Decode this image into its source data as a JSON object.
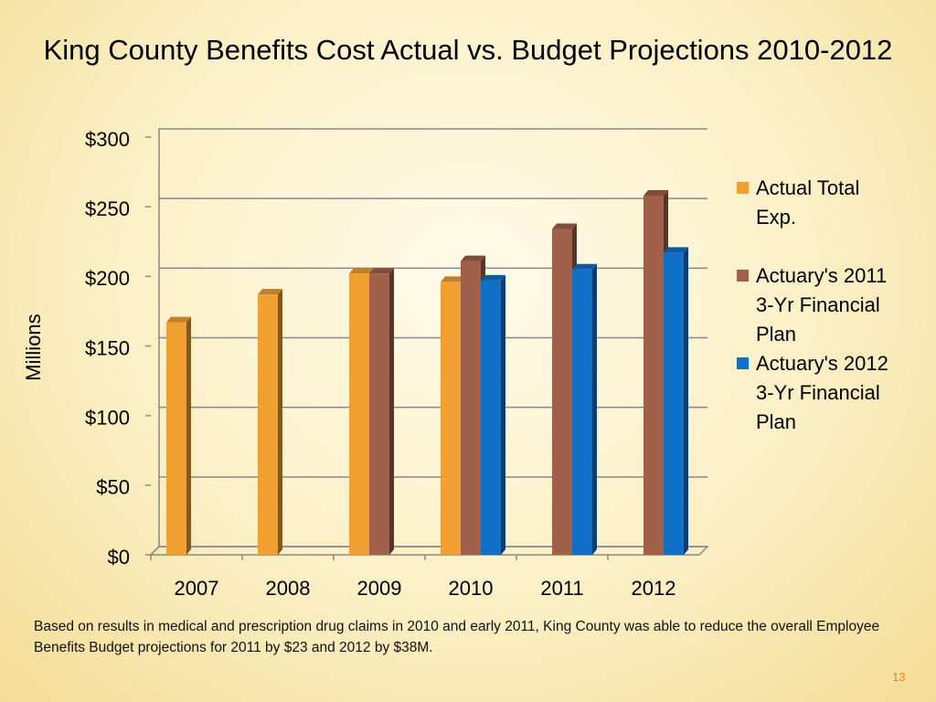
{
  "chart_data": {
    "type": "bar3d",
    "title": "King County Benefits Cost Actual vs. Budget Projections 2010-2012",
    "y_label": "Millions",
    "categories": [
      "2007",
      "2008",
      "2009",
      "2010",
      "2011",
      "2012"
    ],
    "series": [
      {
        "name": "Actual Total Exp.",
        "color": "#f0a030",
        "values": [
          167,
          187,
          202,
          196,
          null,
          null
        ]
      },
      {
        "name": "Actuary's 2011 3-Yr Financial Plan",
        "color": "#a0604a",
        "values": [
          null,
          null,
          202,
          211,
          234,
          258
        ]
      },
      {
        "name": "Actuary's 2012 3-Yr Financial Plan",
        "color": "#1070c8",
        "values": [
          null,
          null,
          null,
          197,
          205,
          217
        ]
      }
    ],
    "ylim": [
      0,
      300
    ],
    "yticks": [
      {
        "value": 0,
        "label": "$0"
      },
      {
        "value": 50,
        "label": "$50"
      },
      {
        "value": 100,
        "label": "$100"
      },
      {
        "value": 150,
        "label": "$150"
      },
      {
        "value": 200,
        "label": "$200"
      },
      {
        "value": 250,
        "label": "$250"
      },
      {
        "value": 300,
        "label": "$300"
      }
    ],
    "grid": true,
    "legend": "right"
  },
  "footnote": "Based on results in medical and prescription drug claims in 2010 and early 2011, King County was able to reduce the overall Employee Benefits Budget projections for 2011 by $23 and 2012 by $38M.",
  "page_number": "13"
}
